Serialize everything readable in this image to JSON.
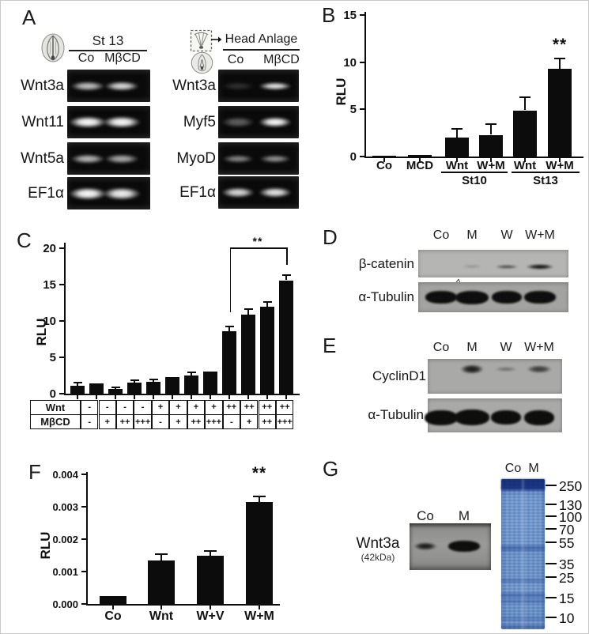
{
  "labels": {
    "A": "A",
    "B": "B",
    "C": "C",
    "D": "D",
    "E": "E",
    "F": "F",
    "G": "G"
  },
  "panel_a": {
    "left": {
      "header": "St 13",
      "lanes": [
        "Co",
        "MβCD"
      ],
      "rows": [
        {
          "name": "Wnt3a",
          "bands": [
            0.75,
            0.85
          ]
        },
        {
          "name": "Wnt11",
          "bands": [
            1,
            1
          ]
        },
        {
          "name": "Wnt5a",
          "bands": [
            0.7,
            0.65
          ]
        },
        {
          "name": "EF1α",
          "bands": [
            1,
            0.95
          ]
        }
      ]
    },
    "right": {
      "header": "Head Anlage",
      "lanes": [
        "Co",
        "MβCD"
      ],
      "rows": [
        {
          "name": "Wnt3a",
          "bands": [
            0.15,
            0.9
          ]
        },
        {
          "name": "Myf5",
          "bands": [
            0.35,
            1
          ]
        },
        {
          "name": "MyoD",
          "bands": [
            0.5,
            0.55
          ]
        },
        {
          "name": "EF1α",
          "bands": [
            0.85,
            0.9
          ]
        }
      ]
    }
  },
  "chart_data": [
    {
      "panel": "B",
      "type": "bar",
      "categories": [
        "Co",
        "MCD",
        "Wnt",
        "W+M",
        "Wnt",
        "W+M"
      ],
      "values": [
        0.1,
        0.2,
        2.0,
        2.3,
        4.9,
        9.3
      ],
      "errors": [
        0,
        0,
        1.0,
        1.2,
        1.5,
        1.2
      ],
      "groups": [
        {
          "label": "St10",
          "bars": [
            2,
            3
          ]
        },
        {
          "label": "St13",
          "bars": [
            4,
            5
          ]
        }
      ],
      "ylabel": "RLU",
      "ylim": [
        0,
        15
      ],
      "yticks": [
        0,
        5,
        10,
        15
      ],
      "annotations": [
        {
          "text": "**",
          "bar": 5
        }
      ],
      "bar_color": "#0c0c0c",
      "grid": false,
      "legend": false
    },
    {
      "panel": "C",
      "type": "bar",
      "values": [
        1.1,
        1.4,
        0.7,
        1.5,
        1.6,
        2.3,
        2.5,
        3.1,
        8.6,
        10.9,
        12.0,
        15.6
      ],
      "errors": [
        0.5,
        0.15,
        0.3,
        0.5,
        0.5,
        0.2,
        0.55,
        0.15,
        0.8,
        0.8,
        0.7,
        0.8
      ],
      "ylabel": "RLU",
      "ylim": [
        0,
        20
      ],
      "yticks": [
        0,
        5,
        10,
        15,
        20
      ],
      "dose_table": {
        "rows": [
          {
            "label": "Wnt",
            "cells": [
              "-",
              "-",
              "-",
              "-",
              "+",
              "+",
              "+",
              "+",
              "++",
              "++",
              "++",
              "++"
            ]
          },
          {
            "label": "MβCD",
            "cells": [
              "-",
              "+",
              "++",
              "+++",
              "-",
              "+",
              "++",
              "+++",
              "-",
              "+",
              "++",
              "+++"
            ]
          }
        ]
      },
      "significance_bracket": {
        "text": "**",
        "from_bar": 8,
        "to_bar": 11
      },
      "bar_color": "#0c0c0c",
      "grid": false,
      "legend": false
    },
    {
      "panel": "F",
      "type": "bar",
      "categories": [
        "Co",
        "Wnt",
        "W+V",
        "W+M"
      ],
      "values": [
        0.00025,
        0.00135,
        0.0015,
        0.00315
      ],
      "errors": [
        2e-05,
        0.0002,
        0.00017,
        0.0002
      ],
      "ylabel": "RLU",
      "ylim": [
        0,
        0.004
      ],
      "yticks": [
        0,
        0.001,
        0.002,
        0.003,
        0.004
      ],
      "ytick_labels": [
        "0.000",
        "0.001",
        "0.002",
        "0.003",
        "0.004"
      ],
      "annotations": [
        {
          "text": "**",
          "bar": 3
        }
      ],
      "bar_color": "#0c0c0c",
      "grid": false,
      "legend": false
    }
  ],
  "panel_d": {
    "lanes": [
      "Co",
      "M",
      "W",
      "W+M"
    ],
    "blots": [
      {
        "name": "β-catenin",
        "bands": [
          0,
          0.15,
          0.55,
          0.9
        ]
      },
      {
        "name": "α-Tubulin",
        "bands": [
          1,
          1,
          1,
          1
        ]
      }
    ]
  },
  "panel_e": {
    "lanes": [
      "Co",
      "M",
      "W",
      "W+M"
    ],
    "blots": [
      {
        "name": "CyclinD1",
        "bands": [
          0,
          0.85,
          0.3,
          0.65
        ]
      },
      {
        "name": "α-Tubulin",
        "bands": [
          1,
          1,
          1,
          1
        ]
      }
    ]
  },
  "panel_g": {
    "blot": {
      "name": "Wnt3a",
      "size_label": "(42kDa)",
      "lanes": [
        "Co",
        "M"
      ],
      "bands": [
        0.85,
        1
      ]
    },
    "gel": {
      "lanes": [
        "Co",
        "M"
      ],
      "markers": [
        250,
        130,
        100,
        70,
        55,
        35,
        25,
        15,
        10
      ]
    }
  },
  "icons": [
    "embryo-dorsal-icon",
    "explant-box-icon",
    "arrow-right-icon",
    "embryo-icon"
  ]
}
